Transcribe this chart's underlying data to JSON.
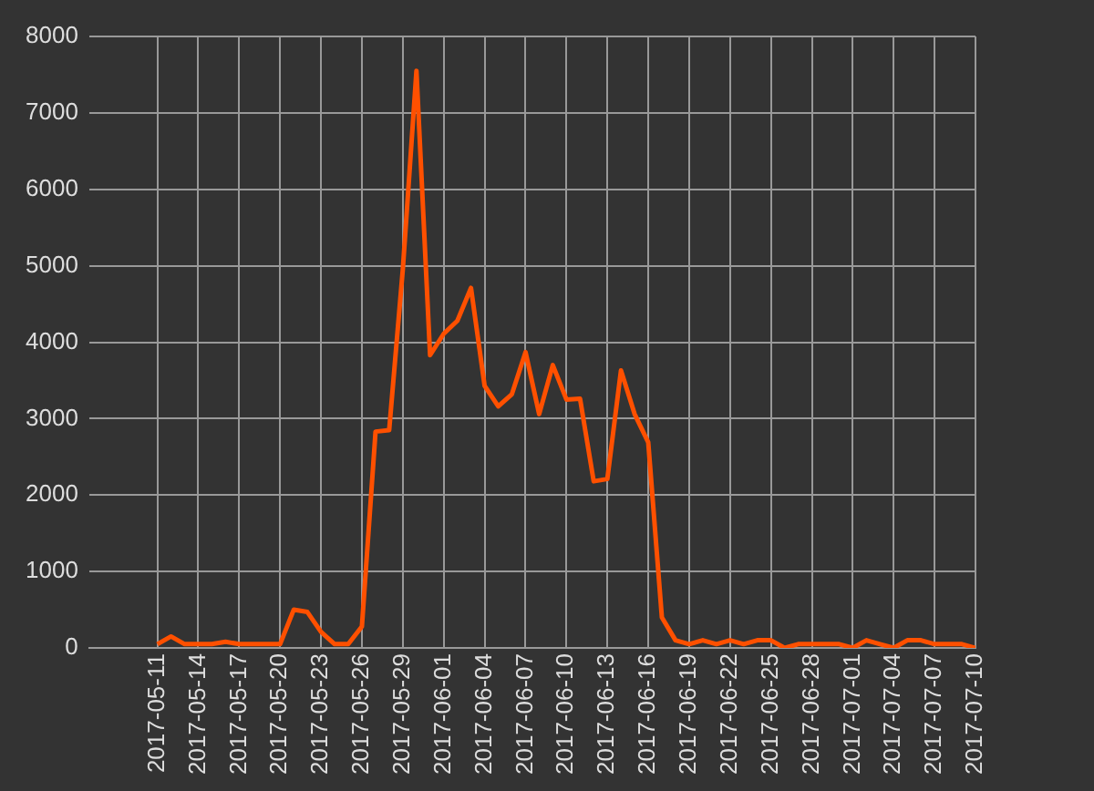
{
  "chart_data": {
    "type": "line",
    "x": [
      "2017-05-11",
      "2017-05-12",
      "2017-05-13",
      "2017-05-14",
      "2017-05-15",
      "2017-05-16",
      "2017-05-17",
      "2017-05-18",
      "2017-05-19",
      "2017-05-20",
      "2017-05-21",
      "2017-05-22",
      "2017-05-23",
      "2017-05-24",
      "2017-05-25",
      "2017-05-26",
      "2017-05-27",
      "2017-05-28",
      "2017-05-29",
      "2017-05-30",
      "2017-05-31",
      "2017-06-01",
      "2017-06-02",
      "2017-06-03",
      "2017-06-04",
      "2017-06-05",
      "2017-06-06",
      "2017-06-07",
      "2017-06-08",
      "2017-06-09",
      "2017-06-10",
      "2017-06-11",
      "2017-06-12",
      "2017-06-13",
      "2017-06-14",
      "2017-06-15",
      "2017-06-16",
      "2017-06-17",
      "2017-06-18",
      "2017-06-19",
      "2017-06-20",
      "2017-06-21",
      "2017-06-22",
      "2017-06-23",
      "2017-06-24",
      "2017-06-25",
      "2017-06-26",
      "2017-06-27",
      "2017-06-28",
      "2017-06-29",
      "2017-06-30",
      "2017-07-01",
      "2017-07-02",
      "2017-07-03",
      "2017-07-04",
      "2017-07-05",
      "2017-07-06",
      "2017-07-07",
      "2017-07-08",
      "2017-07-09",
      "2017-07-10"
    ],
    "series": [
      {
        "color": "#ff5000",
        "values": [
          50,
          150,
          50,
          50,
          50,
          80,
          50,
          50,
          50,
          50,
          500,
          470,
          210,
          50,
          50,
          280,
          2830,
          2850,
          4950,
          7550,
          3830,
          4110,
          4280,
          4710,
          3430,
          3160,
          3320,
          3870,
          3060,
          3700,
          3250,
          3260,
          2180,
          2210,
          3630,
          3060,
          2690,
          400,
          100,
          50,
          100,
          50,
          100,
          50,
          100,
          100,
          0,
          50,
          50,
          50,
          50,
          0,
          100,
          50,
          0,
          100,
          100,
          50,
          50,
          50,
          0
        ]
      }
    ],
    "xlim": [
      "2017-05-06",
      "2017-07-10"
    ],
    "xticks": [
      "2017-05-11",
      "2017-05-14",
      "2017-05-17",
      "2017-05-20",
      "2017-05-23",
      "2017-05-26",
      "2017-05-29",
      "2017-06-01",
      "2017-06-04",
      "2017-06-07",
      "2017-06-10",
      "2017-06-13",
      "2017-06-16",
      "2017-06-19",
      "2017-06-22",
      "2017-06-25",
      "2017-06-28",
      "2017-07-01",
      "2017-07-04",
      "2017-07-07",
      "2017-07-10"
    ],
    "ylim": [
      0,
      8000
    ],
    "yticks": [
      0,
      1000,
      2000,
      3000,
      4000,
      5000,
      6000,
      7000,
      8000
    ],
    "grid": true,
    "legend": false,
    "marker": "none",
    "line_style": "solid"
  }
}
